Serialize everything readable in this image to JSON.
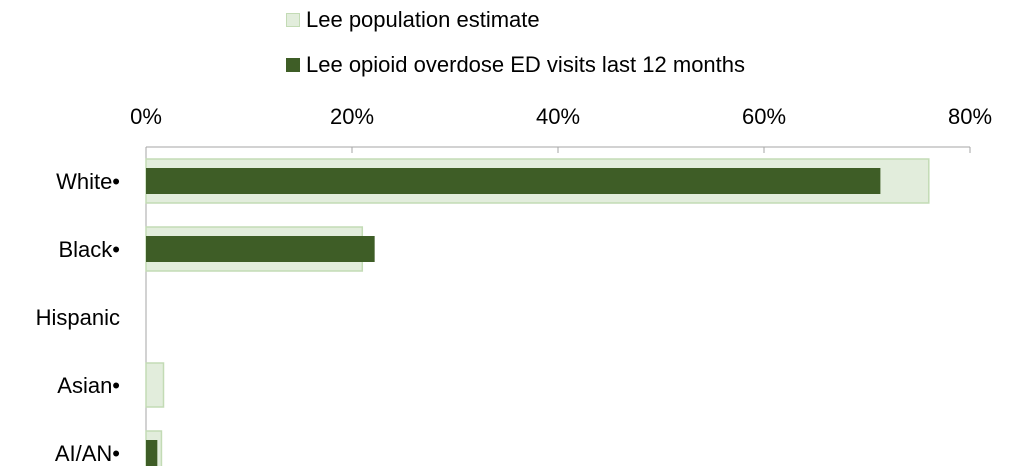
{
  "chart_data": {
    "type": "bar",
    "orientation": "horizontal",
    "categories": [
      "White•",
      "Black•",
      "Hispanic",
      "Asian•",
      "AI/AN•"
    ],
    "series": [
      {
        "name": "Lee population estimate",
        "values": [
          76.0,
          21.0,
          0,
          1.7,
          1.5
        ],
        "color": "#e2eddc",
        "stroke": "#c3dbb5"
      },
      {
        "name": "Lee opioid overdose ED visits last 12 months",
        "values": [
          71.3,
          22.2,
          0,
          0,
          1.1
        ],
        "color": "#3e5d26"
      }
    ],
    "xlim": [
      0,
      80
    ],
    "xticks": [
      "0%",
      "20%",
      "40%",
      "60%",
      "80%"
    ],
    "legend_position": "top",
    "grid": false
  }
}
